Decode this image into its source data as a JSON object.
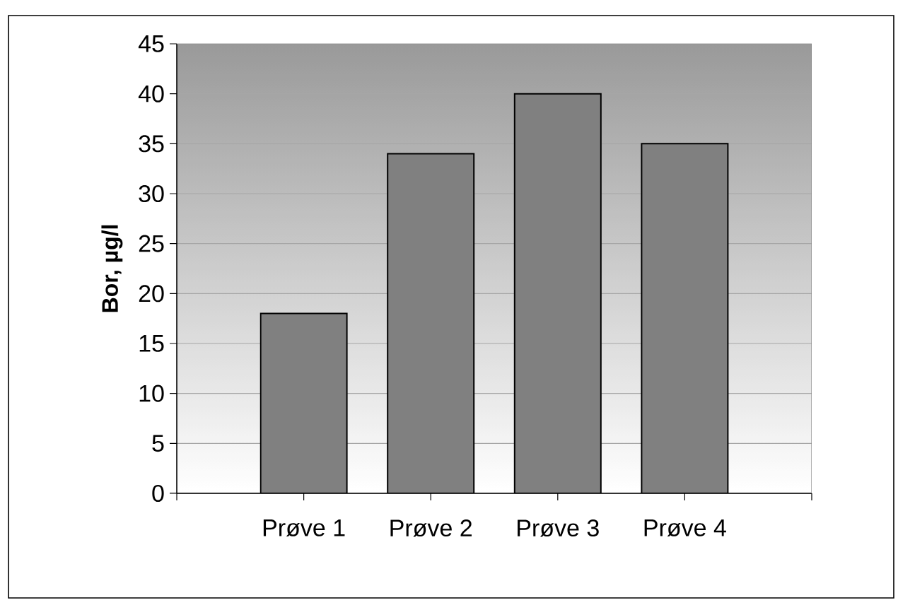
{
  "chart_data": {
    "type": "bar",
    "ylabel": "**Bor, µg/l**",
    "categories": [
      "Prøve 1",
      "Prøve 2",
      "Prøve 3",
      "Prøve 4"
    ],
    "values": [
      18,
      34,
      40,
      35
    ],
    "color": "#808080",
    "ylim": [
      0,
      45
    ],
    "yticks": [
      0,
      5,
      10,
      15,
      20,
      25,
      30,
      35,
      40,
      45
    ],
    "grid": "y"
  }
}
